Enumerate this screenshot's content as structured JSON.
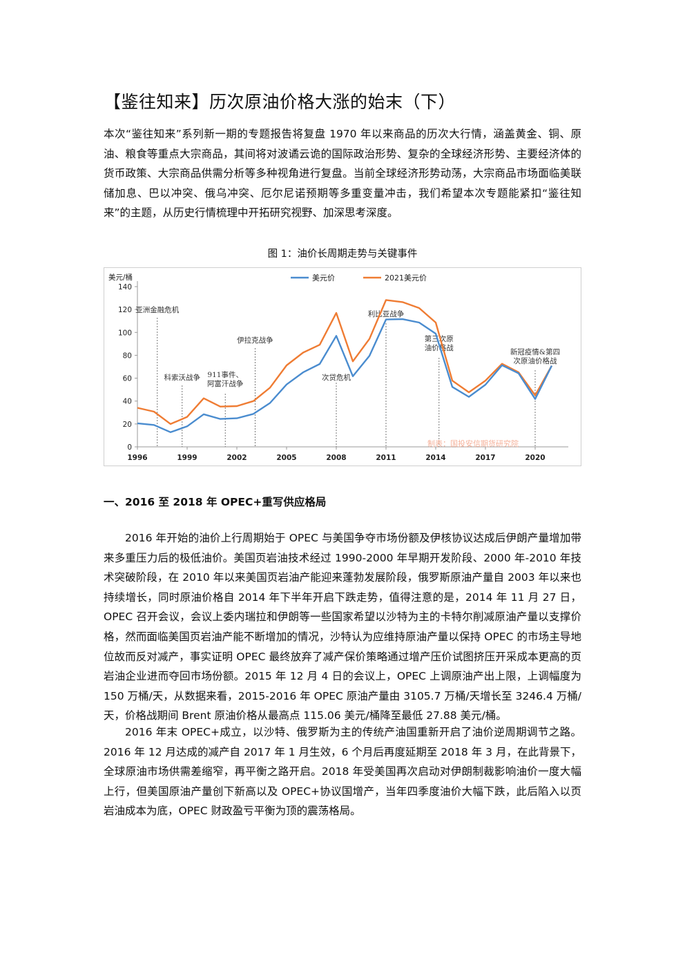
{
  "title": "【鉴往知来】历次原油价格大涨的始末（下）",
  "intro": "本次“鉴往知来”系列新一期的专题报告将复盘 1970 年以来商品的历次大行情，涵盖黄金、铜、原油、粮食等重点大宗商品，其间将对波谲云诡的国际政治形势、复杂的全球经济形势、主要经济体的货币政策、大宗商品供需分析等多种视角进行复盘。当前全球经济形势动荡，大宗商品市场面临美联储加息、巴以冲突、俄乌冲突、厄尔尼诺预期等多重变量冲击，我们希望本次专题能紧扣“鉴往知来”的主题，从历史行情梳理中开拓研究视野、加深思考深度。",
  "figure_caption": "图 1：油价长周期走势与关键事件",
  "chart_data": {
    "type": "line",
    "ylabel": "美元/桶",
    "ylim": [
      0,
      140
    ],
    "yticks": [
      0,
      20,
      40,
      60,
      80,
      100,
      120,
      140
    ],
    "xlim": [
      1996,
      2022
    ],
    "xticks": [
      1996,
      1999,
      2002,
      2005,
      2008,
      2011,
      2014,
      2017,
      2020
    ],
    "x": [
      1996,
      1997,
      1998,
      1999,
      2000,
      2001,
      2002,
      2003,
      2004,
      2005,
      2006,
      2007,
      2008,
      2009,
      2010,
      2011,
      2012,
      2013,
      2014,
      2015,
      2016,
      2017,
      2018,
      2019,
      2020,
      2021
    ],
    "series": [
      {
        "name": "美元价",
        "color": "#4a8ccf",
        "values": [
          20.6,
          19.1,
          12.8,
          17.9,
          28.5,
          24.4,
          25.0,
          28.8,
          38.3,
          54.5,
          65.1,
          72.4,
          97.0,
          61.7,
          79.5,
          111.3,
          111.6,
          108.6,
          98.9,
          52.4,
          43.7,
          54.3,
          71.3,
          64.2,
          41.8,
          70.9
        ]
      },
      {
        "name": "2021美元价",
        "color": "#ef7c33",
        "values": [
          34.1,
          30.8,
          20.0,
          26.2,
          42.4,
          35.2,
          35.6,
          40.0,
          51.7,
          71.2,
          82.4,
          89.2,
          117.0,
          74.7,
          94.3,
          128.3,
          126.5,
          121.3,
          108.6,
          57.9,
          47.7,
          57.9,
          72.6,
          65.1,
          45.0,
          70.9
        ]
      }
    ],
    "annotations": [
      {
        "text": [
          "亚洲金融危机"
        ],
        "year": 1997.2
      },
      {
        "text": [
          "科索沃战争"
        ],
        "year": 1998.7
      },
      {
        "text": [
          "911事件、",
          "阿富汗战争"
        ],
        "year": 2001.3
      },
      {
        "text": [
          "伊拉克战争"
        ],
        "year": 2003.1
      },
      {
        "text": [
          "次贷危机"
        ],
        "year": 2008.0
      },
      {
        "text": [
          "利比亚战争"
        ],
        "year": 2011.0
      },
      {
        "text": [
          "第三次原",
          "油价格战"
        ],
        "year": 2014.2
      },
      {
        "text": [
          "新冠疫情&第四",
          "次原油价格战"
        ],
        "year": 2020.0
      }
    ],
    "watermark": "制表：国投安信期货研究院",
    "grid": false,
    "legend": "top-center"
  },
  "section1_heading": "一、2016 至 2018 年 OPEC+重写供应格局",
  "section1_paragraphs": [
    "2016 年开始的油价上行周期始于 OPEC 与美国争夺市场份额及伊核协议达成后伊朗产量增加带来多重压力后的极低油价。美国页岩油技术经过 1990-2000 年早期开发阶段、2000 年-2010 年技术突破阶段，在 2010 年以来美国页岩油产能迎来蓬勃发展阶段，俄罗斯原油产量自 2003 年以来也持续增长，同时原油价格自 2014 年下半年开启下跌走势，值得注意的是，2014 年 11 月 27 日，OPEC 召开会议，会议上委内瑞拉和伊朗等一些国家希望以沙特为主的卡特尔削减原油产量以支撑价格，然而面临美国页岩油产能不断增加的情况，沙特认为应维持原油产量以保持 OPEC 的市场主导地位故而反对减产，事实证明 OPEC 最终放弃了减产保价策略通过增产压价试图挤压开采成本更高的页岩油企业进而夺回市场份额。2015 年 12 月 4 日的会议上，OPEC 上调原油产出上限，上调幅度为 150 万桶/天，从数据来看，2015-2016 年 OPEC 原油产量由 3105.7 万桶/天增长至 3246.4 万桶/天，价格战期间 Brent 原油价格从最高点 115.06 美元/桶降至最低 27.88 美元/桶。",
    "2016 年末 OPEC+成立，以沙特、俄罗斯为主的传统产油国重新开启了油价逆周期调节之路。2016 年 12 月达成的减产自 2017 年 1 月生效，6 个月后再度延期至 2018 年 3 月，在此背景下，全球原油市场供需差缩窄，再平衡之路开启。2018 年受美国再次启动对伊朗制裁影响油价一度大幅上行，但美国原油产量创下新高以及 OPEC+协议国增产，当年四季度油价大幅下跌，此后陷入以页岩油成本为底，OPEC 财政盈亏平衡为顶的震荡格局。"
  ]
}
